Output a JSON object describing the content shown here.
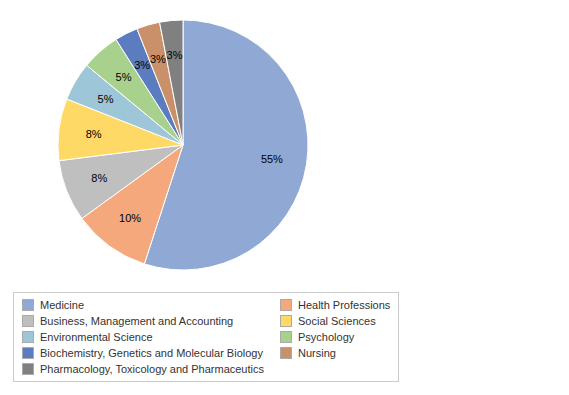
{
  "chart_data": {
    "type": "pie",
    "categories": [
      "Medicine",
      "Health Professions",
      "Business, Management and Accounting",
      "Social Sciences",
      "Environmental Science",
      "Psychology",
      "Biochemistry, Genetics and Molecular Biology",
      "Nursing",
      "Pharmacology, Toxicology and Pharmaceutics"
    ],
    "values": [
      55,
      10,
      8,
      8,
      5,
      5,
      3,
      3,
      3
    ],
    "value_labels": [
      "55%",
      "10%",
      "8%",
      "8%",
      "5%",
      "5%",
      "3%",
      "3%",
      "3%"
    ],
    "colors": [
      "#8FA9D4",
      "#F4A87C",
      "#BFBFBF",
      "#FFD966",
      "#9DC6D8",
      "#A9D18E",
      "#5B7DC0",
      "#C9906A",
      "#808080"
    ],
    "data_labels": true,
    "legend": "bottom"
  }
}
